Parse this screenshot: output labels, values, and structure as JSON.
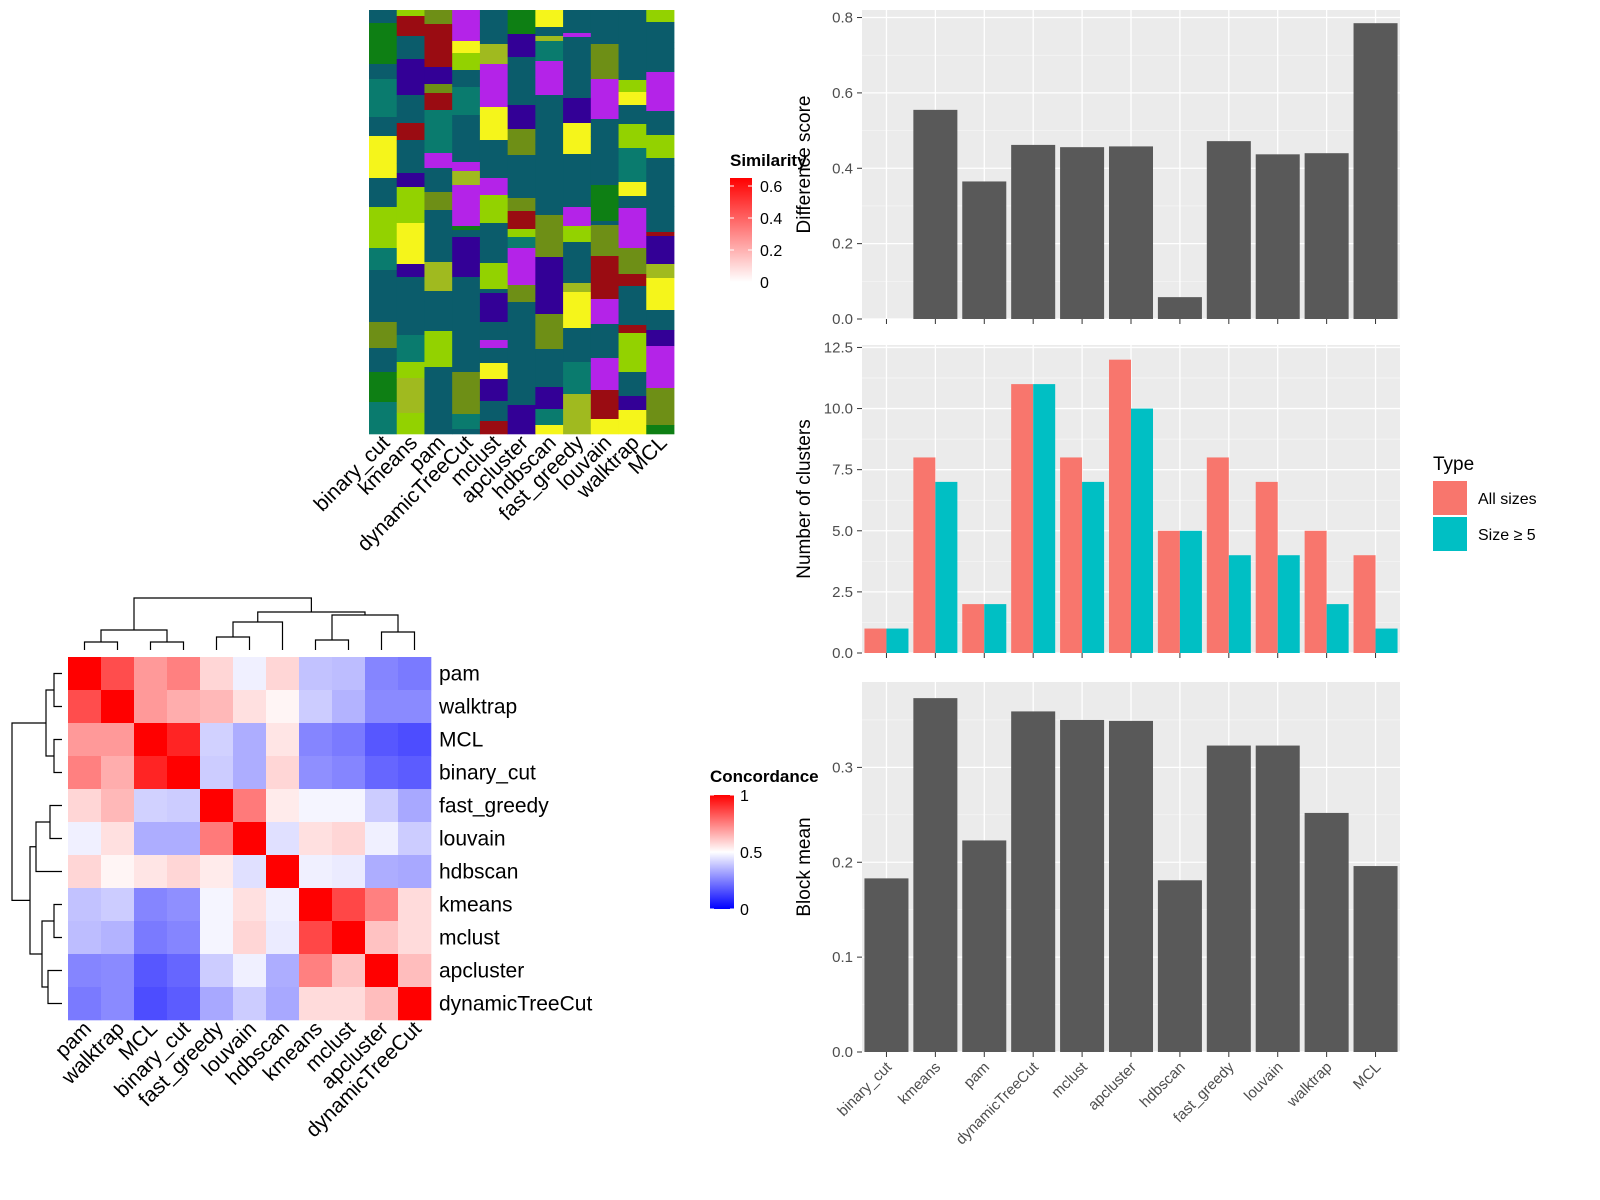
{
  "chart_data": [
    {
      "id": "similarity",
      "type": "heatmap",
      "legend": {
        "title": "Similarity",
        "ticks": [
          "0.6",
          "0.4",
          "0.2",
          "0"
        ],
        "range": [
          0,
          0.65
        ],
        "colors": [
          "#ffffff",
          "#ff0000"
        ]
      }
    },
    {
      "id": "assignments",
      "type": "heatmap",
      "columns": [
        "binary_cut",
        "kmeans",
        "pam",
        "dynamicTreeCut",
        "mclust",
        "apcluster",
        "hdbscan",
        "fast_greedy",
        "louvain",
        "walktrap",
        "MCL"
      ],
      "palette": [
        "#0b5c6b",
        "#0e7f14",
        "#93d200",
        "#6e8f16",
        "#a0ba1f",
        "#9a0c12",
        "#b423e8",
        "#330096",
        "#f5f51b",
        "#0a7b6e"
      ]
    },
    {
      "id": "concordance",
      "type": "heatmap",
      "rows": [
        "pam",
        "walktrap",
        "MCL",
        "binary_cut",
        "fast_greedy",
        "louvain",
        "hdbscan",
        "kmeans",
        "mclust",
        "apcluster",
        "dynamicTreeCut"
      ],
      "columns": [
        "pam",
        "walktrap",
        "MCL",
        "binary_cut",
        "fast_greedy",
        "louvain",
        "hdbscan",
        "kmeans",
        "mclust",
        "apcluster",
        "dynamicTreeCut"
      ],
      "values": [
        [
          1.0,
          0.85,
          0.7,
          0.75,
          0.58,
          0.47,
          0.58,
          0.38,
          0.37,
          0.26,
          0.24
        ],
        [
          0.85,
          1.0,
          0.7,
          0.66,
          0.64,
          0.56,
          0.52,
          0.4,
          0.35,
          0.27,
          0.27
        ],
        [
          0.7,
          0.7,
          1.0,
          0.93,
          0.41,
          0.34,
          0.55,
          0.26,
          0.24,
          0.17,
          0.15
        ],
        [
          0.75,
          0.66,
          0.93,
          1.0,
          0.4,
          0.34,
          0.58,
          0.28,
          0.26,
          0.2,
          0.18
        ],
        [
          0.58,
          0.64,
          0.41,
          0.4,
          1.0,
          0.76,
          0.54,
          0.48,
          0.48,
          0.4,
          0.33
        ],
        [
          0.47,
          0.56,
          0.34,
          0.34,
          0.76,
          1.0,
          0.44,
          0.56,
          0.58,
          0.47,
          0.4
        ],
        [
          0.58,
          0.52,
          0.55,
          0.58,
          0.54,
          0.44,
          1.0,
          0.47,
          0.46,
          0.34,
          0.33
        ],
        [
          0.38,
          0.4,
          0.26,
          0.28,
          0.48,
          0.56,
          0.47,
          1.0,
          0.86,
          0.75,
          0.57
        ],
        [
          0.37,
          0.35,
          0.24,
          0.26,
          0.48,
          0.58,
          0.46,
          0.86,
          1.0,
          0.62,
          0.57
        ],
        [
          0.26,
          0.27,
          0.17,
          0.2,
          0.4,
          0.47,
          0.34,
          0.75,
          0.62,
          1.0,
          0.63
        ],
        [
          0.24,
          0.27,
          0.15,
          0.18,
          0.33,
          0.4,
          0.33,
          0.57,
          0.57,
          0.63,
          1.0
        ]
      ],
      "legend": {
        "title": "Concordance",
        "ticks": [
          "1",
          "0.5",
          "0"
        ],
        "range": [
          0,
          1
        ],
        "colors": [
          "#0000ff",
          "#ffffff",
          "#ff0000"
        ]
      }
    },
    {
      "id": "difference",
      "type": "bar",
      "categories": [
        "binary_cut",
        "kmeans",
        "pam",
        "dynamicTreeCut",
        "mclust",
        "apcluster",
        "hdbscan",
        "fast_greedy",
        "louvain",
        "walktrap",
        "MCL"
      ],
      "values": [
        0,
        0.555,
        0.365,
        0.462,
        0.456,
        0.458,
        0.058,
        0.472,
        0.437,
        0.44,
        0.785
      ],
      "ylabel": "Difference score",
      "ylim": [
        0,
        0.82
      ],
      "yticks": [
        "0.0",
        "0.2",
        "0.4",
        "0.6",
        "0.8"
      ]
    },
    {
      "id": "nclusters",
      "type": "bar",
      "categories": [
        "binary_cut",
        "kmeans",
        "pam",
        "dynamicTreeCut",
        "mclust",
        "apcluster",
        "hdbscan",
        "fast_greedy",
        "louvain",
        "walktrap",
        "MCL"
      ],
      "series": [
        {
          "name": "All sizes",
          "color": "#f8766d",
          "values": [
            1,
            8,
            2,
            11,
            8,
            12,
            5,
            8,
            7,
            5,
            4
          ]
        },
        {
          "name": "Size ≥ 5",
          "color": "#00bfc4",
          "values": [
            1,
            7,
            2,
            11,
            7,
            10,
            5,
            4,
            4,
            2,
            1
          ]
        }
      ],
      "ylabel": "Number of clusters",
      "ylim": [
        0,
        12.6
      ],
      "yticks": [
        "0.0",
        "2.5",
        "5.0",
        "7.5",
        "10.0",
        "12.5"
      ],
      "legend_title": "Type"
    },
    {
      "id": "blockmean",
      "type": "bar",
      "categories": [
        "binary_cut",
        "kmeans",
        "pam",
        "dynamicTreeCut",
        "mclust",
        "apcluster",
        "hdbscan",
        "fast_greedy",
        "louvain",
        "walktrap",
        "MCL"
      ],
      "values": [
        0.183,
        0.373,
        0.223,
        0.359,
        0.35,
        0.349,
        0.181,
        0.323,
        0.323,
        0.252,
        0.196
      ],
      "ylabel": "Block mean",
      "ylim": [
        0,
        0.39
      ],
      "yticks": [
        "0.0",
        "0.1",
        "0.2",
        "0.3"
      ]
    }
  ]
}
